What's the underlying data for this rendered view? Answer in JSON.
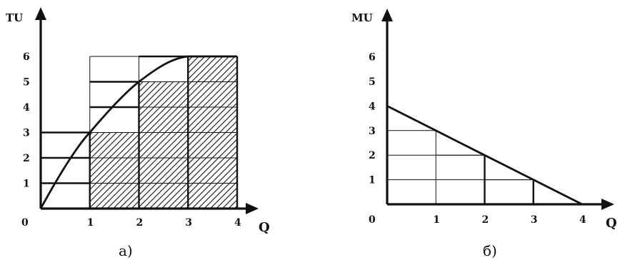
{
  "chart_data": [
    {
      "type": "line",
      "ylabel": "TU",
      "xlabel": "Q",
      "caption": "а)",
      "x_ticks": [
        "0",
        "1",
        "2",
        "3",
        "4"
      ],
      "y_ticks": [
        "1",
        "2",
        "3",
        "4",
        "5",
        "6"
      ],
      "xlim": [
        0,
        4
      ],
      "ylim": [
        0,
        6
      ],
      "series": [
        {
          "x": [
            0,
            1,
            2,
            3,
            4
          ],
          "y": [
            0,
            3,
            5,
            6,
            6
          ]
        }
      ],
      "step_bars": [
        {
          "q": 1,
          "value": 3
        },
        {
          "q": 2,
          "value": 5
        },
        {
          "q": 3,
          "value": 6
        },
        {
          "q": 4,
          "value": 6
        }
      ],
      "hatched_area": "between Q=1 and Q=4, heights 3, 5, 6",
      "grid": true
    },
    {
      "type": "line",
      "ylabel": "MU",
      "xlabel": "Q",
      "caption": "б)",
      "x_ticks": [
        "0",
        "1",
        "2",
        "3",
        "4"
      ],
      "y_ticks": [
        "1",
        "2",
        "3",
        "4",
        "5",
        "6"
      ],
      "xlim": [
        0,
        4
      ],
      "ylim": [
        0,
        6
      ],
      "series": [
        {
          "x": [
            0,
            1,
            2,
            3,
            4
          ],
          "y": [
            4,
            3,
            2,
            1,
            0
          ]
        }
      ],
      "grid": true
    }
  ]
}
